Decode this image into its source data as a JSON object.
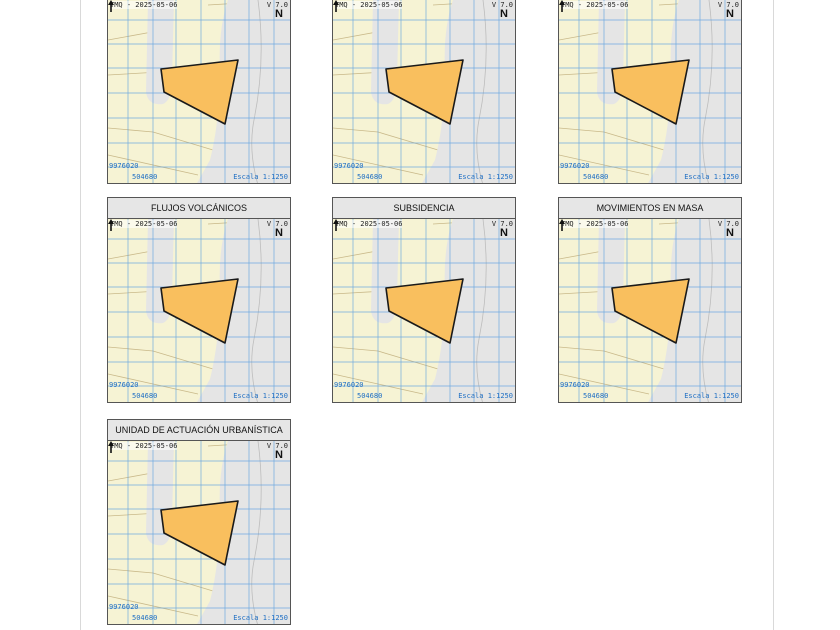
{
  "colors": {
    "parcel_fill": "#f9bf5e",
    "parcel_stroke": "#1a1a1a",
    "land": "#f6f3d4",
    "road": "#e5e5e5",
    "grid": "#5b9fe0",
    "coord_text": "#1f6fc4"
  },
  "map_common": {
    "date": "TMQ - 2025-05-06",
    "version": "V 7.0",
    "north": "N",
    "coord_y": "9976020",
    "coord_x": "504680",
    "scale": "Escala 1:1250"
  },
  "panels": [
    {
      "title": ""
    },
    {
      "title": ""
    },
    {
      "title": ""
    },
    {
      "title": "FLUJOS VOLCÁNICOS"
    },
    {
      "title": "SUBSIDENCIA"
    },
    {
      "title": "MOVIMIENTOS EN MASA"
    },
    {
      "title": "UNIDAD DE ACTUACIÓN URBANÍSTICA"
    }
  ]
}
